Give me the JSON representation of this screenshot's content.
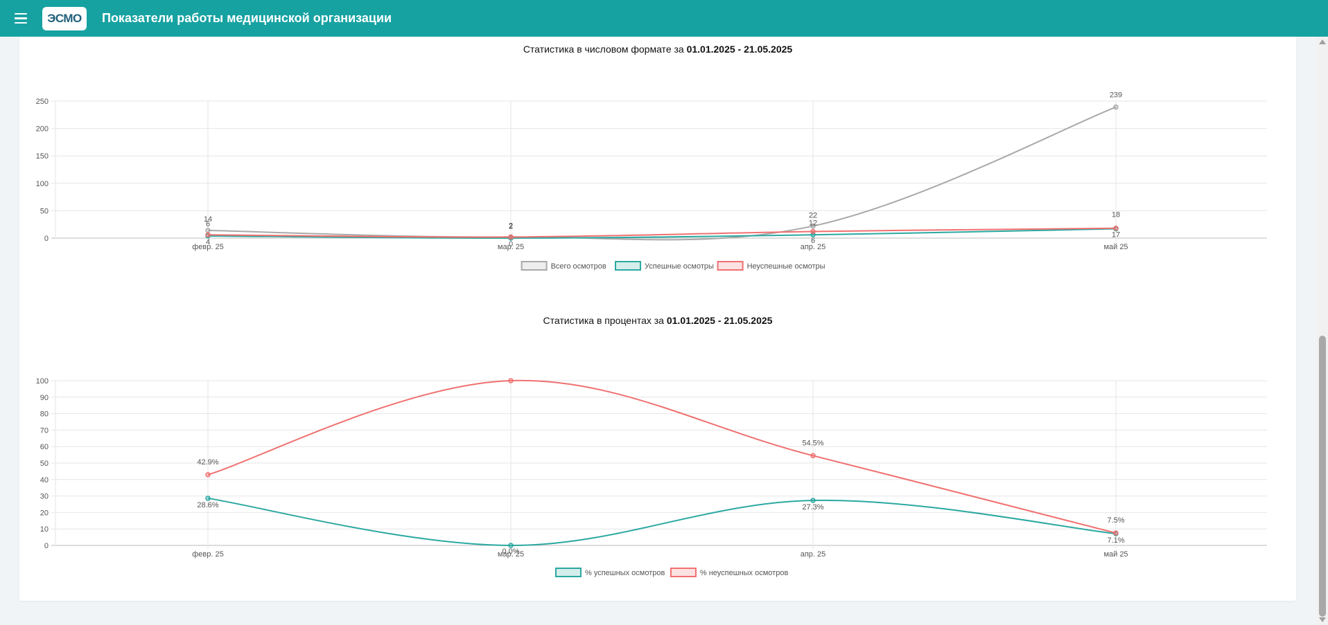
{
  "header": {
    "logo_text": "ЭСМО",
    "title": "Показатели работы медицинской организации"
  },
  "chart_titles": {
    "numeric_prefix": "Статистика в числовом формате за ",
    "percent_prefix": "Статистика в процентах за ",
    "period": "01.01.2025 - 21.05.2025"
  },
  "colors": {
    "header": "#17a2a2",
    "total": "#a9a9a9",
    "success": "#2aa8a0",
    "fail": "#f07070"
  },
  "chart_data": [
    {
      "type": "line",
      "title": "Статистика в числовом формате за 01.01.2025 - 21.05.2025",
      "categories": [
        "февр. 25",
        "мар. 25",
        "апр. 25",
        "май 25"
      ],
      "yticks": [
        0,
        50,
        100,
        150,
        200,
        250
      ],
      "ylim": [
        0,
        250
      ],
      "legend_position": "bottom",
      "series": [
        {
          "name": "Всего осмотров",
          "color": "#a9a9a9",
          "values": [
            14,
            2,
            22,
            239
          ],
          "labels": [
            "14",
            "2",
            "22",
            "239"
          ]
        },
        {
          "name": "Успешные осмотры",
          "color": "#2aa8a0",
          "values": [
            4,
            0,
            6,
            17
          ],
          "labels": [
            "4",
            "0",
            "6",
            "17"
          ]
        },
        {
          "name": "Неуспешные осмотры",
          "color": "#f07070",
          "values": [
            6,
            2,
            12,
            18
          ],
          "labels": [
            "6",
            "2",
            "12",
            "18"
          ]
        }
      ]
    },
    {
      "type": "line",
      "title": "Статистика в процентах за 01.01.2025 - 21.05.2025",
      "categories": [
        "февр. 25",
        "мар. 25",
        "апр. 25",
        "май 25"
      ],
      "yticks": [
        0,
        10,
        20,
        30,
        40,
        50,
        60,
        70,
        80,
        90,
        100
      ],
      "ylim": [
        0,
        100
      ],
      "legend_position": "bottom",
      "series": [
        {
          "name": "% успешных осмотров",
          "color": "#2aa8a0",
          "values": [
            28.6,
            0,
            27.3,
            7.1
          ],
          "labels": [
            "28.6%",
            "0.0%",
            "27.3%",
            "7.1%"
          ]
        },
        {
          "name": "% неуспешных осмотров",
          "color": "#f07070",
          "values": [
            42.9,
            100,
            54.5,
            7.5
          ],
          "labels": [
            "42.9%",
            "",
            "54.5%",
            "7.5%"
          ]
        }
      ]
    }
  ]
}
